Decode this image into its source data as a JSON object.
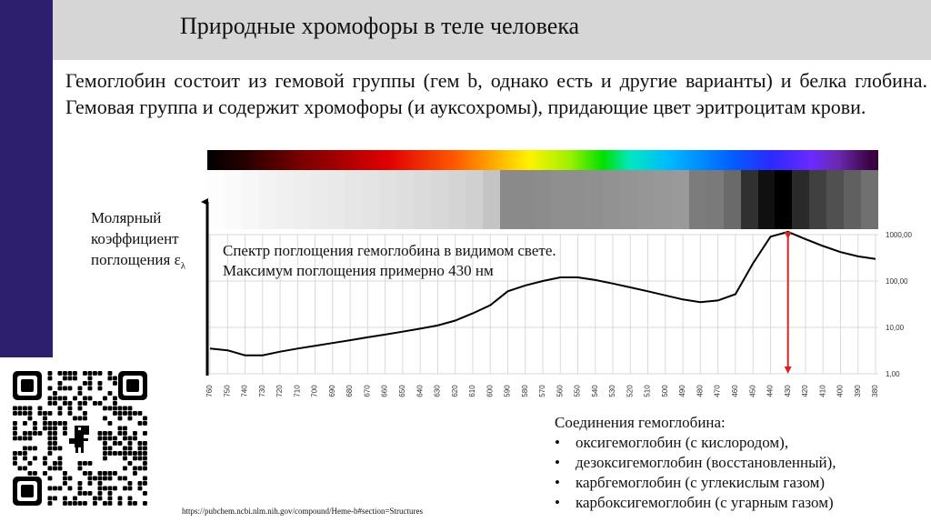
{
  "slide": {
    "title": "Природные хромофоры в теле человека",
    "intro": "Гемоглобин состоит из гемовой группы (гем b, однако есть и другие варианты) и белка глобина. Гемовая группа и содержит хромофоры (и ауксохромы), придающие цвет эритроцитам крови.",
    "url": "https://pubchem.ncbi.nlm.nih.gov/compound/Heme-b#section=Structures",
    "compounds": {
      "heading": "Соединения гемоглобина:",
      "items": [
        "оксигемоглобин (с кислородом),",
        "дезоксигемоглобин (восстановленный),",
        "карбгемоглобин (с углекислым газом)",
        "карбоксигемоглобин (с угарным газом)"
      ]
    }
  },
  "chart_data": {
    "type": "line",
    "ylabel_lines": [
      "Молярный",
      "коэффициент",
      "поглощения ε"
    ],
    "ylabel_sub": "λ",
    "annotation_lines": [
      "Спектр поглощения гемоглобина в видимом свете.",
      "Максимум поглощения  примерно 430 нм"
    ],
    "y_scale": "log",
    "ylim": [
      1,
      1000
    ],
    "y_ticks": [
      "1,00",
      "10,00",
      "100,00",
      "1000,00"
    ],
    "x": [
      760,
      750,
      740,
      730,
      720,
      710,
      700,
      690,
      680,
      670,
      660,
      650,
      640,
      630,
      620,
      610,
      600,
      590,
      580,
      570,
      560,
      550,
      540,
      530,
      520,
      510,
      500,
      490,
      480,
      470,
      460,
      450,
      440,
      430,
      420,
      410,
      400,
      390,
      380
    ],
    "values": [
      3.5,
      3.2,
      2.5,
      2.5,
      3.0,
      3.5,
      4.0,
      4.6,
      5.3,
      6.1,
      7.0,
      8.1,
      9.4,
      11,
      14,
      20,
      30,
      60,
      80,
      100,
      120,
      120,
      105,
      88,
      73,
      60,
      49,
      40,
      35,
      38,
      52,
      240,
      900,
      1150,
      800,
      570,
      420,
      340,
      300
    ],
    "peak_marker_x": 430,
    "grid": true,
    "marker_color": "#e02020"
  }
}
